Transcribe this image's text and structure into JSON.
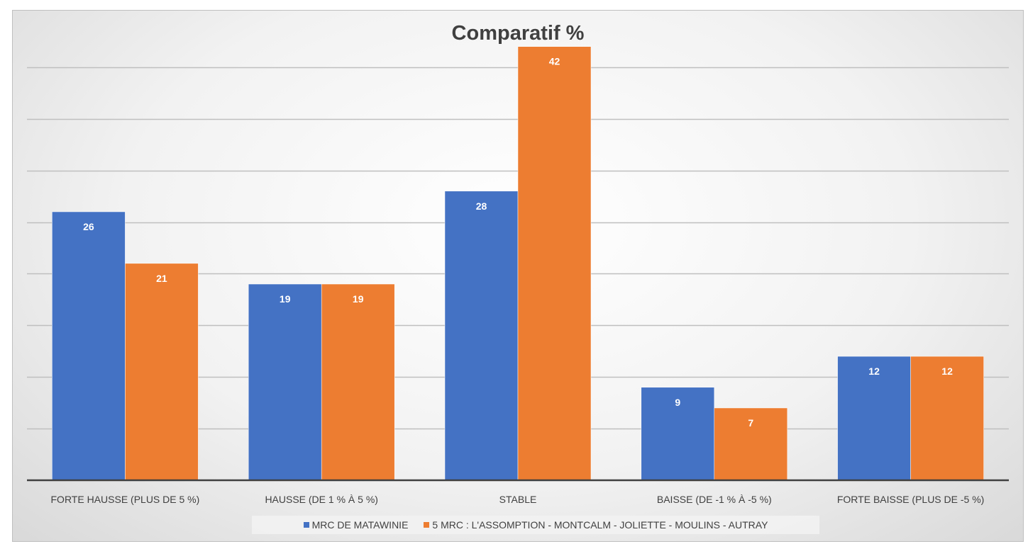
{
  "chart_data": {
    "type": "bar",
    "title": "Comparatif %",
    "xlabel": "",
    "ylabel": "",
    "ylim": [
      0,
      45
    ],
    "grid": true,
    "legend_position": "bottom",
    "categories": [
      "FORTE HAUSSE (PLUS DE 5 %)",
      "HAUSSE (DE 1 % À 5 %)",
      "STABLE",
      "BAISSE (DE -1 % À -5 %)",
      "FORTE BAISSE (PLUS DE -5 %)"
    ],
    "series": [
      {
        "name": "MRC DE MATAWINIE",
        "color": "#4472c4",
        "values": [
          26,
          19,
          28,
          9,
          12
        ]
      },
      {
        "name": "5 MRC  : L'ASSOMPTION - MONTCALM - JOLIETTE - MOULINS - AUTRAY",
        "color": "#ed7d31",
        "values": [
          21,
          19,
          42,
          7,
          12
        ]
      }
    ]
  }
}
